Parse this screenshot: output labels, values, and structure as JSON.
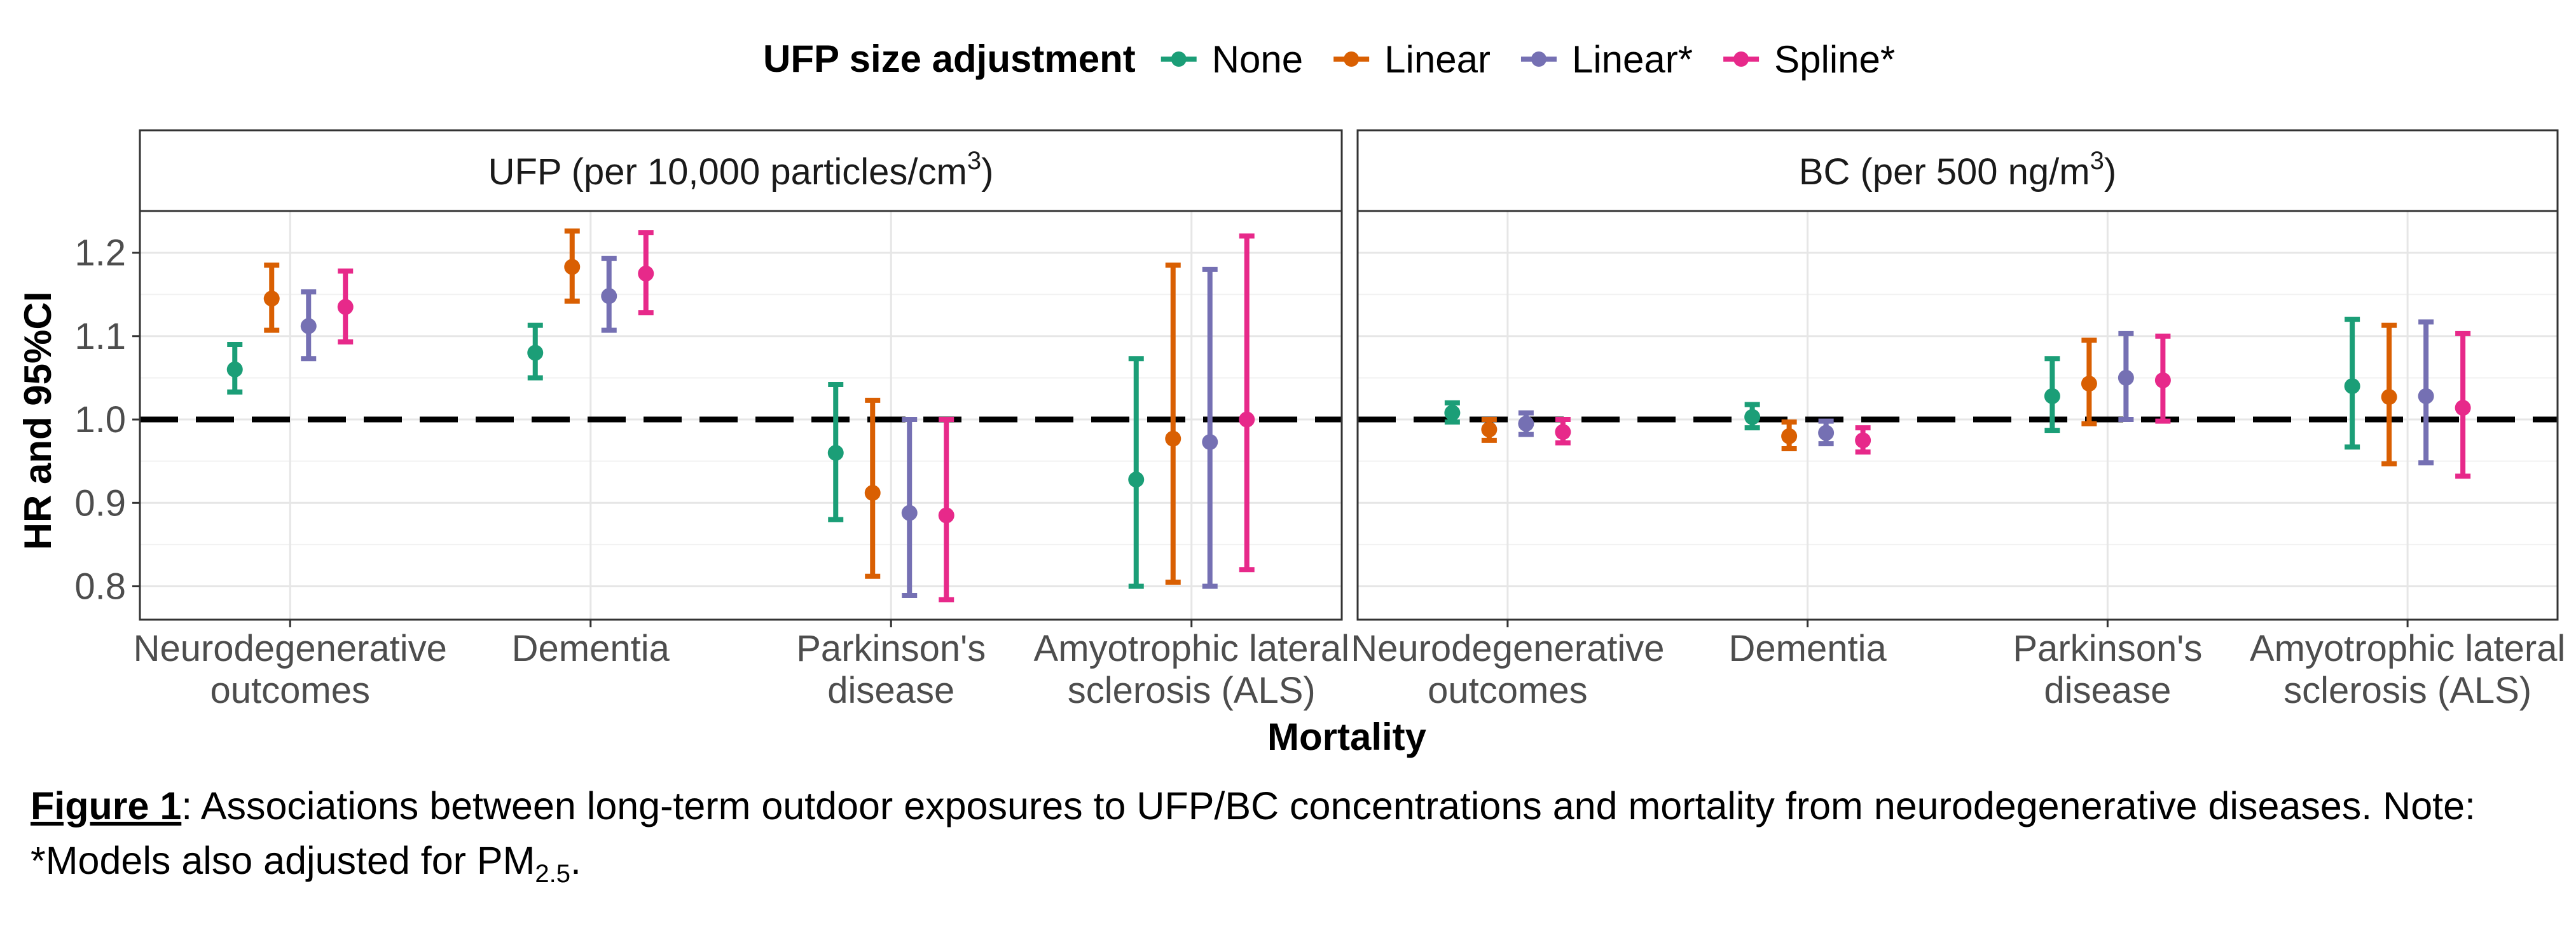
{
  "chart_data": {
    "type": "errorbar",
    "legend": {
      "title": "UFP size adjustment",
      "position": "top",
      "entries": [
        {
          "name": "None",
          "color": "#1b9e77"
        },
        {
          "name": "Linear",
          "color": "#d95f02"
        },
        {
          "name": "Linear*",
          "color": "#7570b3"
        },
        {
          "name": "Spline*",
          "color": "#e7298a"
        }
      ]
    },
    "ylabel": "HR and 95%CI",
    "xlabel": "Mortality",
    "ylim": [
      0.76,
      1.25
    ],
    "yticks": [
      "0.8",
      "0.9",
      "1.0",
      "1.1",
      "1.2"
    ],
    "reference_line": 1.0,
    "grid": true,
    "categories": [
      [
        "Neurodegenerative",
        "outcomes"
      ],
      [
        "Dementia"
      ],
      [
        "Parkinson's",
        "disease"
      ],
      [
        "Amyotrophic lateral",
        "sclerosis (ALS)"
      ]
    ],
    "panels": [
      {
        "title": "UFP (per 10,000 particles/cm",
        "title_sup": "3",
        "title_end": ")",
        "series": [
          {
            "name": "None",
            "hr": [
              1.06,
              1.08,
              0.96,
              0.928
            ],
            "lower": [
              1.033,
              1.05,
              0.88,
              0.8
            ],
            "upper": [
              1.09,
              1.113,
              1.042,
              1.073
            ]
          },
          {
            "name": "Linear",
            "hr": [
              1.145,
              1.183,
              0.912,
              0.977
            ],
            "lower": [
              1.107,
              1.142,
              0.812,
              0.805
            ],
            "upper": [
              1.185,
              1.226,
              1.023,
              1.185
            ]
          },
          {
            "name": "Linear*",
            "hr": [
              1.112,
              1.148,
              0.888,
              0.973
            ],
            "lower": [
              1.073,
              1.107,
              0.789,
              0.8
            ],
            "upper": [
              1.153,
              1.193,
              1.0,
              1.18
            ]
          },
          {
            "name": "Spline*",
            "hr": [
              1.135,
              1.175,
              0.885,
              1.0
            ],
            "lower": [
              1.093,
              1.128,
              0.784,
              0.82
            ],
            "upper": [
              1.178,
              1.224,
              1.0,
              1.22
            ]
          }
        ]
      },
      {
        "title": "BC (per 500 ng/m",
        "title_sup": "3",
        "title_end": ")",
        "series": [
          {
            "name": "None",
            "hr": [
              1.008,
              1.003,
              1.028,
              1.04
            ],
            "lower": [
              0.997,
              0.99,
              0.987,
              0.967
            ],
            "upper": [
              1.02,
              1.018,
              1.073,
              1.12
            ]
          },
          {
            "name": "Linear",
            "hr": [
              0.988,
              0.98,
              1.043,
              1.027
            ],
            "lower": [
              0.975,
              0.965,
              0.995,
              0.947
            ],
            "upper": [
              1.0,
              0.997,
              1.095,
              1.113
            ]
          },
          {
            "name": "Linear*",
            "hr": [
              0.995,
              0.984,
              1.05,
              1.028
            ],
            "lower": [
              0.982,
              0.971,
              1.0,
              0.948
            ],
            "upper": [
              1.008,
              0.998,
              1.103,
              1.117
            ]
          },
          {
            "name": "Spline*",
            "hr": [
              0.985,
              0.975,
              1.047,
              1.014
            ],
            "lower": [
              0.972,
              0.961,
              0.998,
              0.932
            ],
            "upper": [
              1.0,
              0.99,
              1.1,
              1.103
            ]
          }
        ]
      }
    ]
  },
  "caption": {
    "label": "Figure 1",
    "text_before_sub": ": Associations between long-term outdoor exposures to UFP/BC concentrations and mortality from neurodegenerative diseases. Note: *Models also adjusted for PM",
    "sub": "2.5",
    "text_after_sub": "."
  }
}
